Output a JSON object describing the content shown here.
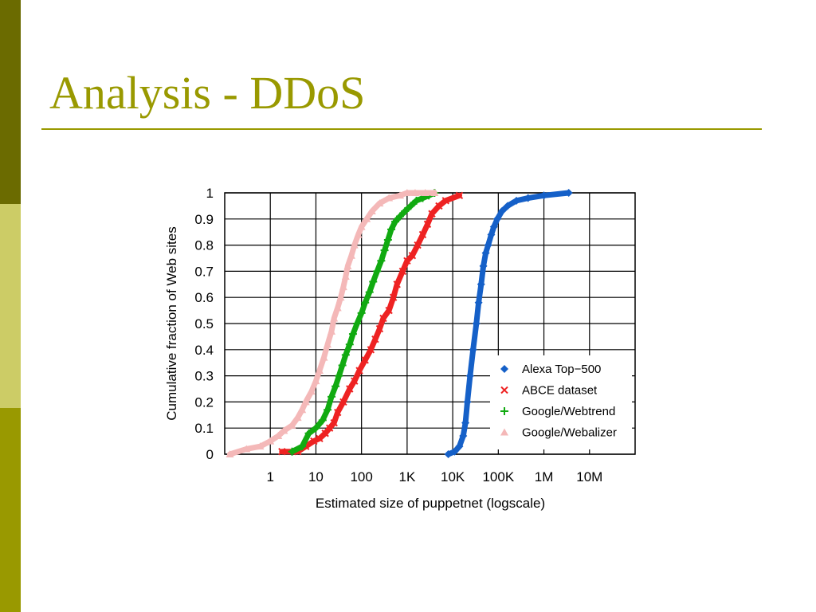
{
  "slide": {
    "title": "Analysis - DDoS"
  },
  "colors": {
    "side_top": "#6b6b00",
    "side_mid": "#cccc66",
    "side_bottom": "#999900",
    "title": "#999900"
  },
  "chart_data": {
    "type": "line",
    "xlabel": "Estimated size of puppetnet (logscale)",
    "ylabel": "Cumulative fraction of Web sites",
    "x_scale": "log",
    "xlim": [
      0.1,
      100000000
    ],
    "ylim": [
      0,
      1
    ],
    "x_ticks": [
      {
        "value": 1,
        "label": "1"
      },
      {
        "value": 10,
        "label": "10"
      },
      {
        "value": 100,
        "label": "100"
      },
      {
        "value": 1000,
        "label": "1K"
      },
      {
        "value": 10000,
        "label": "10K"
      },
      {
        "value": 100000,
        "label": "100K"
      },
      {
        "value": 1000000,
        "label": "1M"
      },
      {
        "value": 10000000,
        "label": "10M"
      }
    ],
    "y_ticks": [
      {
        "value": 0,
        "label": "0"
      },
      {
        "value": 0.1,
        "label": "0.1"
      },
      {
        "value": 0.2,
        "label": "0.2"
      },
      {
        "value": 0.3,
        "label": "0.3"
      },
      {
        "value": 0.4,
        "label": "0.4"
      },
      {
        "value": 0.5,
        "label": "0.5"
      },
      {
        "value": 0.6,
        "label": "0.6"
      },
      {
        "value": 0.7,
        "label": "0.7"
      },
      {
        "value": 0.8,
        "label": "0.8"
      },
      {
        "value": 0.9,
        "label": "0.9"
      },
      {
        "value": 1,
        "label": "1"
      }
    ],
    "grid": true,
    "legend_position": "bottom-right",
    "series": [
      {
        "name": "Alexa Top−500",
        "color": "#1560c8",
        "marker": "diamond",
        "x": [
          8000,
          11000,
          14000,
          17000,
          19000,
          21000,
          24000,
          28000,
          33000,
          37000,
          42000,
          47000,
          53000,
          60000,
          70000,
          80000,
          95000,
          120000,
          160000,
          250000,
          450000,
          1000000,
          3500000
        ],
        "y": [
          0,
          0.01,
          0.03,
          0.07,
          0.12,
          0.2,
          0.3,
          0.4,
          0.5,
          0.58,
          0.65,
          0.72,
          0.77,
          0.8,
          0.84,
          0.87,
          0.9,
          0.93,
          0.95,
          0.97,
          0.98,
          0.99,
          1.0
        ]
      },
      {
        "name": "ABCE dataset",
        "color": "#ee2222",
        "marker": "x",
        "x": [
          1.8,
          4,
          6,
          9,
          12,
          16,
          20,
          25,
          30,
          40,
          55,
          70,
          90,
          120,
          160,
          200,
          250,
          300,
          400,
          500,
          600,
          800,
          1000,
          1300,
          1700,
          2200,
          2800,
          3500,
          5000,
          7000,
          14000
        ],
        "y": [
          0.01,
          0.01,
          0.03,
          0.05,
          0.06,
          0.08,
          0.1,
          0.12,
          0.16,
          0.2,
          0.25,
          0.28,
          0.32,
          0.36,
          0.4,
          0.44,
          0.48,
          0.52,
          0.55,
          0.6,
          0.65,
          0.7,
          0.74,
          0.76,
          0.8,
          0.84,
          0.88,
          0.92,
          0.95,
          0.97,
          0.99
        ]
      },
      {
        "name": "Google/Webtrend",
        "color": "#11aa11",
        "marker": "plus",
        "x": [
          3,
          5,
          7,
          10,
          14,
          18,
          22,
          27,
          32,
          38,
          45,
          55,
          65,
          80,
          100,
          120,
          150,
          180,
          220,
          270,
          320,
          380,
          450,
          550,
          700,
          900,
          1200,
          1600,
          2200,
          3000,
          4000
        ],
        "y": [
          0.01,
          0.03,
          0.08,
          0.1,
          0.13,
          0.17,
          0.22,
          0.26,
          0.3,
          0.34,
          0.38,
          0.42,
          0.46,
          0.5,
          0.54,
          0.58,
          0.62,
          0.66,
          0.7,
          0.74,
          0.78,
          0.82,
          0.86,
          0.89,
          0.91,
          0.93,
          0.95,
          0.97,
          0.98,
          0.99,
          1.0
        ]
      },
      {
        "name": "Google/Webalizer",
        "color": "#f4b8b8",
        "marker": "triangle",
        "x": [
          0.13,
          0.3,
          0.6,
          1,
          1.5,
          2,
          3,
          4,
          5,
          6,
          8,
          10,
          12,
          15,
          18,
          22,
          25,
          30,
          35,
          40,
          45,
          50,
          60,
          70,
          85,
          100,
          130,
          170,
          250,
          400,
          700,
          1000,
          1500,
          2500,
          4000
        ],
        "y": [
          0.0,
          0.02,
          0.03,
          0.05,
          0.07,
          0.09,
          0.11,
          0.14,
          0.17,
          0.2,
          0.24,
          0.28,
          0.32,
          0.37,
          0.42,
          0.47,
          0.52,
          0.56,
          0.6,
          0.64,
          0.68,
          0.72,
          0.76,
          0.8,
          0.84,
          0.87,
          0.9,
          0.93,
          0.96,
          0.98,
          0.99,
          1.0,
          1.0,
          1.0,
          1.0
        ]
      }
    ]
  }
}
